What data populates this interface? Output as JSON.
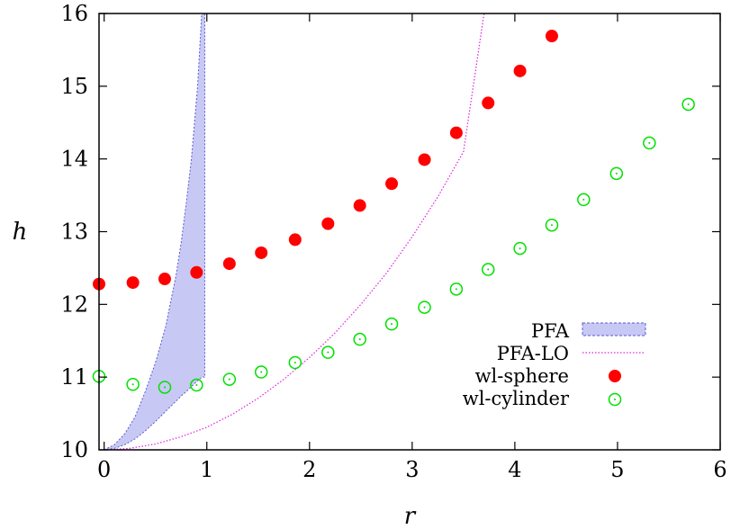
{
  "chart_data": {
    "type": "scatter",
    "xlabel": "r",
    "ylabel": "h",
    "xlim": [
      -0.05,
      6
    ],
    "ylim": [
      10,
      16
    ],
    "xticks": [
      "0",
      "1",
      "2",
      "3",
      "4",
      "5",
      "6"
    ],
    "yticks": [
      "10",
      "11",
      "12",
      "13",
      "14",
      "15",
      "16"
    ],
    "grid": false,
    "legend_position": "bottom-right",
    "series": [
      {
        "name": "PFA",
        "kind": "band",
        "color": "#c8c8f4",
        "edge_color": "#5a5ad0",
        "x": [
          0,
          0.1,
          0.2,
          0.3,
          0.4,
          0.5,
          0.6,
          0.7,
          0.75,
          0.8,
          0.85,
          0.88,
          0.91,
          0.93,
          0.95,
          0.97,
          0.98
        ],
        "upper": [
          10,
          10.07,
          10.22,
          10.45,
          10.8,
          11.2,
          11.7,
          12.4,
          12.85,
          13.4,
          14.0,
          14.5,
          15.0,
          15.5,
          16.0,
          16.0,
          16.0
        ],
        "lower": [
          10,
          10.02,
          10.07,
          10.15,
          10.26,
          10.39,
          10.53,
          10.67,
          10.74,
          10.8,
          10.87,
          10.91,
          10.95,
          10.97,
          11.0,
          11.0,
          11.0
        ]
      },
      {
        "name": "PFA-LO",
        "kind": "line",
        "color": "#e020e0",
        "x": [
          0,
          0.25,
          0.5,
          0.75,
          1.0,
          1.25,
          1.5,
          1.75,
          2.0,
          2.25,
          2.5,
          2.75,
          3.0,
          3.25,
          3.5,
          3.7
        ],
        "y": [
          10,
          10.02,
          10.08,
          10.18,
          10.31,
          10.49,
          10.71,
          10.97,
          11.27,
          11.61,
          12.0,
          12.43,
          12.93,
          13.48,
          14.1,
          16.0
        ]
      },
      {
        "name": "wl-sphere",
        "kind": "filled_circle",
        "color": "#ff0000",
        "x": [
          -0.05,
          0.28,
          0.59,
          0.9,
          1.22,
          1.53,
          1.86,
          2.18,
          2.49,
          2.8,
          3.12,
          3.43,
          3.74,
          4.05,
          4.36
        ],
        "y": [
          12.28,
          12.3,
          12.35,
          12.44,
          12.56,
          12.71,
          12.89,
          13.11,
          13.36,
          13.66,
          13.99,
          14.36,
          14.77,
          15.21,
          15.69
        ]
      },
      {
        "name": "wl-cylinder",
        "kind": "open_circle",
        "color": "#00e000",
        "x": [
          -0.05,
          0.28,
          0.59,
          0.9,
          1.22,
          1.53,
          1.86,
          2.18,
          2.49,
          2.8,
          3.12,
          3.43,
          3.74,
          4.05,
          4.36,
          4.67,
          4.99,
          5.31,
          5.69
        ],
        "y": [
          11.01,
          10.9,
          10.86,
          10.89,
          10.97,
          11.07,
          11.2,
          11.34,
          11.52,
          11.73,
          11.96,
          12.21,
          12.48,
          12.77,
          13.09,
          13.44,
          13.8,
          14.22,
          14.75
        ]
      }
    ]
  }
}
